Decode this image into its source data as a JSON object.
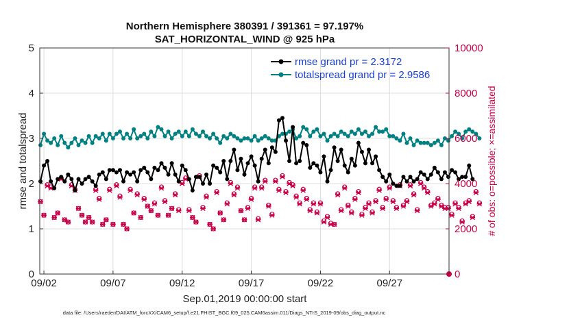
{
  "colors": {
    "rmse": "#000000",
    "spread": "#008080",
    "obs": "#c8004a",
    "legend_text": "#1a3fd6",
    "grid": "#dddddd"
  },
  "chart_data": {
    "type": "line",
    "title": "Northern Hemisphere 380391 / 391361 = 97.197%",
    "subtitle": "SAT_HORIZONTAL_WIND @ 925 hPa",
    "xlabel": "Sep.01,2019 00:00:00 start",
    "ylabel": "rmse and totalspread",
    "y2label": "# of obs: o=possible; ×=assimilated",
    "footnote": "data file: /Users/raeder/DAI/ATM_forcXX/CAM6_setup/f.e21.FHIST_BGC.f09_025.CAM6assim.011/Diags_NTrS_2019-09/obs_diag_output.nc",
    "xlim": [
      1.7,
      31.3
    ],
    "ylim": [
      0,
      5
    ],
    "y2lim": [
      0,
      10000
    ],
    "x_ticks": [
      2,
      7,
      12,
      17,
      22,
      27
    ],
    "x_tick_labels": [
      "09/02",
      "09/07",
      "09/12",
      "09/17",
      "09/22",
      "09/27"
    ],
    "y_ticks": [
      "0",
      "1",
      "2",
      "3",
      "4",
      "5"
    ],
    "y2_ticks": [
      "0",
      "2000",
      "4000",
      "6000",
      "8000",
      "10000"
    ],
    "legend": [
      "rmse grand pr = 2.3172",
      "totalspread grand pr = 2.9586"
    ],
    "legend_position": "top-right",
    "time_step_days": 0.25,
    "time_start_day": 1.75,
    "series": [
      {
        "name": "rmse",
        "axis": "left",
        "values": [
          2.05,
          2.4,
          2.5,
          2.05,
          1.9,
          2.1,
          2.15,
          2.05,
          2.2,
          2.1,
          1.85,
          2.1,
          2.0,
          2.1,
          2.15,
          2.05,
          1.95,
          2.2,
          2.25,
          2.1,
          2.3,
          2.3,
          2.25,
          2.3,
          2.05,
          2.25,
          2.2,
          2.25,
          2.05,
          2.3,
          2.35,
          2.25,
          2.1,
          2.35,
          2.3,
          2.45,
          2.35,
          2.2,
          2.45,
          2.2,
          2.05,
          2.4,
          2.3,
          2.1,
          1.85,
          2.15,
          2.15,
          2.0,
          2.2,
          2.0,
          2.4,
          2.35,
          2.25,
          2.5,
          2.1,
          2.5,
          2.75,
          2.3,
          2.55,
          2.2,
          2.45,
          2.6,
          2.4,
          2.05,
          2.55,
          2.75,
          2.45,
          2.8,
          2.7,
          3.4,
          3.45,
          2.95,
          2.5,
          3.25,
          2.45,
          2.5,
          2.9,
          2.85,
          2.35,
          2.45,
          2.4,
          2.25,
          2.6,
          2.05,
          2.3,
          2.8,
          2.5,
          2.75,
          2.4,
          2.25,
          2.55,
          2.4,
          2.9,
          2.7,
          2.45,
          2.75,
          2.45,
          2.6,
          2.3,
          2.15,
          2.05,
          2.2,
          2.0,
          1.95,
          1.95,
          2.15,
          2.05,
          2.15,
          2.05,
          2.1,
          2.25,
          2.2,
          2.1,
          2.2,
          2.35,
          2.25,
          2.1,
          2.25,
          2.15,
          2.3,
          2.25,
          2.1,
          2.15,
          2.15,
          2.4,
          2.1
        ]
      },
      {
        "name": "totalspread",
        "axis": "left",
        "values": [
          2.85,
          3.1,
          2.95,
          2.9,
          3.0,
          2.85,
          3.05,
          2.9,
          2.8,
          2.9,
          3.0,
          2.85,
          2.95,
          2.9,
          3.05,
          2.9,
          3.05,
          3.0,
          3.1,
          2.95,
          3.1,
          3.0,
          3.1,
          3.15,
          3.0,
          3.1,
          3.0,
          3.2,
          3.0,
          3.05,
          3.1,
          3.0,
          3.15,
          3.05,
          3.25,
          3.2,
          3.05,
          3.15,
          3.0,
          3.1,
          3.15,
          3.05,
          3.15,
          3.05,
          3.2,
          3.1,
          3.05,
          3.15,
          3.05,
          3.0,
          3.1,
          3.0,
          2.9,
          3.05,
          3.0,
          3.1,
          3.05,
          3.0,
          2.95,
          3.0,
          3.0,
          2.95,
          3.05,
          2.95,
          3.0,
          3.05,
          3.0,
          2.95,
          2.95,
          3.05,
          3.1,
          3.1,
          3.15,
          3.2,
          3.0,
          3.05,
          3.25,
          3.2,
          3.05,
          3.15,
          3.2,
          3.05,
          3.1,
          2.95,
          3.05,
          3.1,
          3.05,
          3.15,
          3.1,
          3.05,
          3.15,
          3.1,
          3.2,
          3.1,
          3.15,
          3.05,
          3.1,
          3.25,
          3.15,
          3.15,
          3.2,
          3.05,
          3.05,
          3.0,
          2.95,
          3.1,
          2.9,
          3.0,
          2.85,
          2.95,
          2.9,
          2.9,
          2.9,
          2.85,
          2.9,
          2.95,
          2.85,
          3.0,
          2.95,
          3.05,
          3.15,
          3.1,
          3.0,
          3.15,
          3.2,
          3.15,
          3.1,
          3.0
        ]
      },
      {
        "name": "obs_assimilated",
        "axis": "right",
        "values": [
          3200,
          2600,
          3900,
          3800,
          2500,
          2700,
          4200,
          2400,
          2300,
          3900,
          3700,
          2900,
          2600,
          2300,
          2500,
          2300,
          3700,
          3300,
          2200,
          2400,
          3700,
          2200,
          3900,
          3400,
          2200,
          2000,
          3700,
          2700,
          3500,
          2500,
          3300,
          3000,
          2800,
          3100,
          2600,
          3800,
          3200,
          2600,
          2900,
          3500,
          2800,
          4000,
          4200,
          2800,
          2500,
          2300,
          4300,
          2900,
          3400,
          2200,
          2000,
          3600,
          2700,
          2400,
          3100,
          4000,
          3500,
          3800,
          2800,
          2400,
          2900,
          3300,
          3800,
          2400,
          3800,
          4100,
          3000,
          2600,
          4100,
          3700,
          4300,
          3600,
          4000,
          3900,
          3400,
          3100,
          3700,
          3300,
          2800,
          3100,
          2700,
          3100,
          2300,
          2500,
          2200,
          2200,
          3500,
          2800,
          3800,
          3000,
          2700,
          3300,
          3600,
          2600,
          2900,
          3100,
          2700,
          3200,
          3700,
          2900,
          3300,
          3800,
          3200,
          2900,
          3900,
          3000,
          3200,
          3900,
          3500,
          2800,
          4000,
          3800,
          3600,
          3000,
          3100,
          3300,
          3000,
          2900,
          2900,
          2600,
          3100,
          2900,
          2300,
          3100,
          3200,
          2500,
          3600,
          3100
        ]
      },
      {
        "name": "obs_possible",
        "axis": "right",
        "values": [
          3200,
          2600,
          3950,
          3850,
          2500,
          2700,
          4250,
          2400,
          2300,
          3950,
          3750,
          2900,
          2600,
          2300,
          2500,
          2300,
          3750,
          3350,
          2200,
          2400,
          3750,
          2200,
          3950,
          3450,
          2200,
          2000,
          3750,
          2700,
          3550,
          2500,
          3350,
          3000,
          2800,
          3150,
          2600,
          3850,
          3250,
          2600,
          2900,
          3550,
          2850,
          4050,
          4250,
          2850,
          2500,
          2300,
          4350,
          2950,
          3450,
          2200,
          2000,
          3650,
          2700,
          2400,
          3150,
          4050,
          3550,
          3850,
          2800,
          2400,
          2950,
          3350,
          3850,
          2450,
          3850,
          4150,
          3050,
          2650,
          4150,
          3750,
          4350,
          3650,
          4050,
          3950,
          3450,
          3150,
          3750,
          3350,
          2850,
          3150,
          2750,
          3150,
          2350,
          2550,
          2250,
          2200,
          3550,
          2850,
          3850,
          3050,
          2750,
          3350,
          3650,
          2650,
          2950,
          3150,
          2750,
          3250,
          3750,
          2950,
          3350,
          3850,
          3250,
          2950,
          3950,
          3050,
          3250,
          3950,
          3550,
          2850,
          4050,
          3850,
          3650,
          3050,
          3150,
          3350,
          3050,
          2950,
          2950,
          2650,
          3150,
          2950,
          2350,
          3150,
          3250,
          2550,
          3650,
          3150
        ]
      }
    ]
  }
}
